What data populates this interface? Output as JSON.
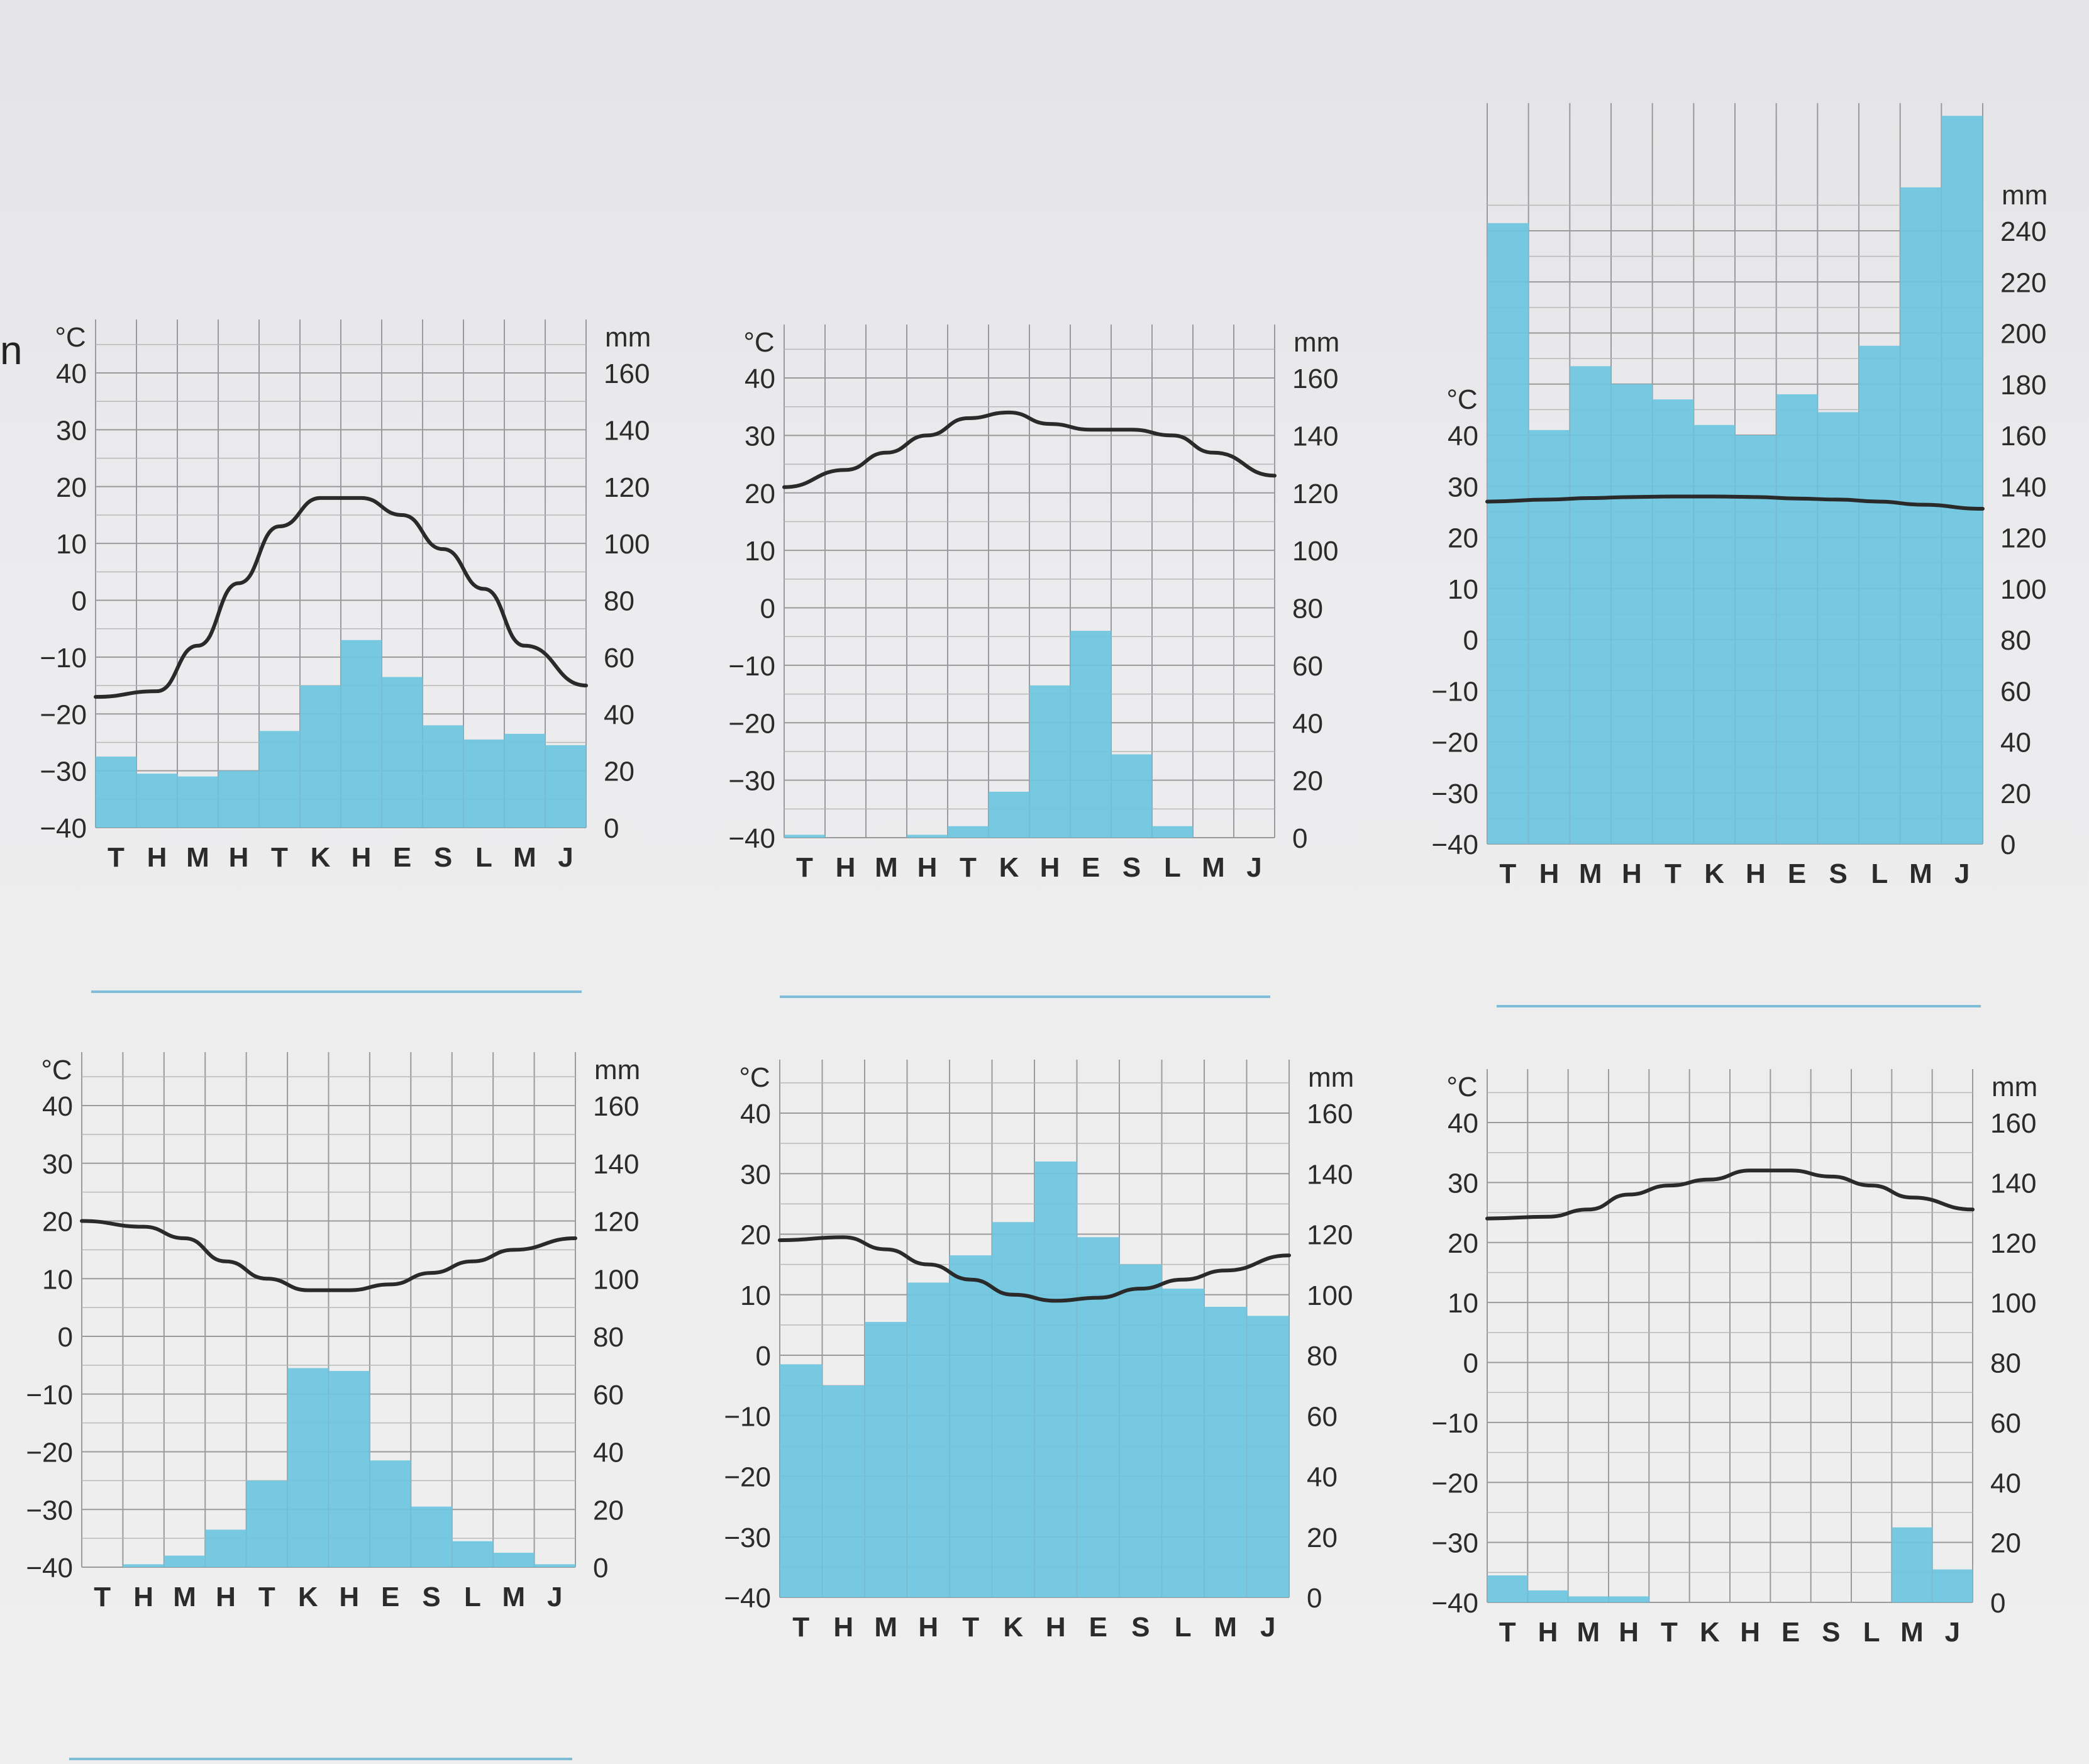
{
  "page": {
    "stray_glyph": "n"
  },
  "common": {
    "temp_unit": "°C",
    "precip_unit": "mm",
    "months": [
      "T",
      "H",
      "M",
      "H",
      "T",
      "K",
      "H",
      "E",
      "S",
      "L",
      "M",
      "J"
    ],
    "temp_ticks": [
      40,
      30,
      20,
      10,
      0,
      -10,
      -20,
      -30,
      -40
    ],
    "precip_ticks_160": [
      160,
      140,
      120,
      100,
      80,
      60,
      40,
      20,
      0
    ],
    "precip_ticks_240": [
      240,
      220,
      200,
      180,
      160,
      140,
      120,
      100,
      80,
      60,
      40,
      20,
      0
    ]
  },
  "colors": {
    "bar": "#6cc6e0",
    "line": "#2a2a2a",
    "grid": "#9a9a9a",
    "answer_line": "#7fbcd8"
  },
  "chart_data": [
    {
      "type": "bar",
      "categories": [
        "T",
        "H",
        "M",
        "H",
        "T",
        "K",
        "H",
        "E",
        "S",
        "L",
        "M",
        "J"
      ],
      "xlabel": "",
      "y_left_label": "°C",
      "y_right_label": "mm",
      "temp_range": [
        -40,
        40
      ],
      "precip_range": [
        0,
        160
      ],
      "grid": true,
      "series": [
        {
          "type": "bar",
          "values": [
            25,
            19,
            18,
            20,
            34,
            50,
            66,
            53,
            36,
            31,
            33,
            29
          ]
        },
        {
          "type": "line",
          "values": [
            -17,
            -16,
            -8,
            3,
            13,
            18,
            18,
            15,
            9,
            2,
            -8,
            -15
          ]
        }
      ]
    },
    {
      "type": "bar",
      "categories": [
        "T",
        "H",
        "M",
        "H",
        "T",
        "K",
        "H",
        "E",
        "S",
        "L",
        "M",
        "J"
      ],
      "xlabel": "",
      "y_left_label": "°C",
      "y_right_label": "mm",
      "temp_range": [
        -40,
        40
      ],
      "precip_range": [
        0,
        160
      ],
      "grid": true,
      "series": [
        {
          "type": "bar",
          "values": [
            1,
            0,
            0,
            1,
            4,
            16,
            53,
            72,
            29,
            4,
            0,
            0
          ]
        },
        {
          "type": "line",
          "values": [
            21,
            24,
            27,
            30,
            33,
            34,
            32,
            31,
            31,
            30,
            27,
            23
          ]
        }
      ]
    },
    {
      "type": "bar",
      "categories": [
        "T",
        "H",
        "M",
        "H",
        "T",
        "K",
        "H",
        "E",
        "S",
        "L",
        "M",
        "J"
      ],
      "xlabel": "",
      "y_left_label": "°C",
      "y_right_label": "mm",
      "temp_range": [
        -40,
        40
      ],
      "precip_range": [
        0,
        240
      ],
      "grid": true,
      "series": [
        {
          "type": "bar",
          "values": [
            243,
            162,
            187,
            180,
            174,
            164,
            160,
            176,
            169,
            195,
            257,
            285
          ]
        },
        {
          "type": "line",
          "values": [
            27,
            27.4,
            27.7,
            27.9,
            28,
            28,
            27.9,
            27.6,
            27.4,
            27,
            26.4,
            25.6
          ]
        }
      ]
    },
    {
      "type": "bar",
      "categories": [
        "T",
        "H",
        "M",
        "H",
        "T",
        "K",
        "H",
        "E",
        "S",
        "L",
        "M",
        "J"
      ],
      "xlabel": "",
      "y_left_label": "°C",
      "y_right_label": "mm",
      "temp_range": [
        -40,
        40
      ],
      "precip_range": [
        0,
        160
      ],
      "grid": true,
      "series": [
        {
          "type": "bar",
          "values": [
            0,
            1,
            4,
            13,
            30,
            69,
            68,
            37,
            21,
            9,
            5,
            1
          ]
        },
        {
          "type": "line",
          "values": [
            20,
            19,
            17,
            13,
            10,
            8,
            8,
            9,
            11,
            13,
            15,
            17
          ]
        }
      ]
    },
    {
      "type": "bar",
      "categories": [
        "T",
        "H",
        "M",
        "H",
        "T",
        "K",
        "H",
        "E",
        "S",
        "L",
        "M",
        "J"
      ],
      "xlabel": "",
      "y_left_label": "°C",
      "y_right_label": "mm",
      "temp_range": [
        -40,
        40
      ],
      "precip_range": [
        0,
        160
      ],
      "grid": true,
      "series": [
        {
          "type": "bar",
          "values": [
            77,
            70,
            91,
            104,
            113,
            124,
            144,
            119,
            110,
            102,
            96,
            93
          ]
        },
        {
          "type": "line",
          "values": [
            19,
            19.5,
            17.5,
            15,
            12.5,
            10,
            9,
            9.5,
            11,
            12.5,
            14,
            16.5
          ]
        }
      ]
    },
    {
      "type": "bar",
      "categories": [
        "T",
        "H",
        "M",
        "H",
        "T",
        "K",
        "H",
        "E",
        "S",
        "L",
        "M",
        "J"
      ],
      "xlabel": "",
      "y_left_label": "°C",
      "y_right_label": "mm",
      "temp_range": [
        -40,
        40
      ],
      "precip_range": [
        0,
        160
      ],
      "grid": true,
      "series": [
        {
          "type": "bar",
          "values": [
            9,
            4,
            2,
            2,
            0,
            0,
            0,
            0,
            0,
            0,
            25,
            11
          ]
        },
        {
          "type": "line",
          "values": [
            24,
            24.3,
            25.5,
            28,
            29.5,
            30.5,
            32,
            32,
            31,
            29.5,
            27.5,
            25.5
          ]
        }
      ]
    }
  ]
}
